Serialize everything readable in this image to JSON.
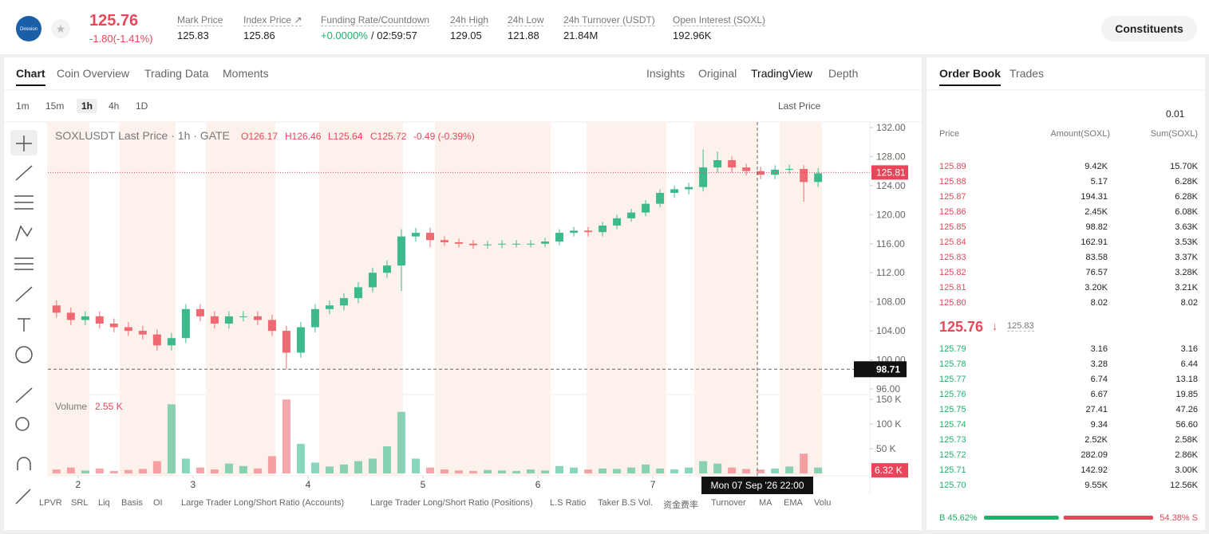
{
  "header": {
    "logo": "Direxion",
    "price": "125.76",
    "change": "-1.80(-1.41%)",
    "stats": [
      {
        "label": "Mark Price",
        "value": "125.83"
      },
      {
        "label": "Index Price ↗",
        "value": "125.86"
      },
      {
        "label": "Funding Rate/Countdown",
        "value": "+0.0000%",
        "extra": "/ 02:59:57"
      },
      {
        "label": "24h High",
        "value": "129.05"
      },
      {
        "label": "24h Low",
        "value": "121.88"
      },
      {
        "label": "24h Turnover (USDT)",
        "value": "21.84M"
      },
      {
        "label": "Open Interest (SOXL)",
        "value": "192.96K"
      }
    ],
    "button": "Constituents"
  },
  "chart_panel": {
    "tabs": [
      "Chart",
      "Coin Overview",
      "Trading Data",
      "Moments"
    ],
    "views": [
      "Insights",
      "Original",
      "TradingView",
      "Depth"
    ],
    "intervals": [
      "1m",
      "15m",
      "1h",
      "4h",
      "1D"
    ],
    "price_source": "Last Price",
    "legend": {
      "title": "SOXLUSDT Last Price · 1h · GATE",
      "o": "O126.17",
      "h": "H126.46",
      "l": "L125.64",
      "c": "C125.72",
      "chg": "-0.49 (-0.39%)"
    },
    "volume_label": "Volume",
    "volume_value": "2.55 K",
    "indicators": [
      "LPVR",
      "SRL",
      "Liq",
      "Basis",
      "OI",
      "Large Trader Long/Short Ratio (Accounts)",
      "Large Trader Long/Short Ratio (Positions)",
      "L.S Ratio",
      "Taker B.S Vol.",
      "资金费率",
      "Turnover",
      "MA",
      "EMA",
      "Volu"
    ]
  },
  "chart_data": {
    "type": "candlestick",
    "up_color": "#3cba8c",
    "down_color": "#ee6a72",
    "open": [
      107.5,
      106.5,
      105.5,
      106,
      105,
      104.5,
      104,
      103.5,
      102,
      103,
      107,
      106,
      105,
      106,
      106,
      105.5,
      104,
      101,
      104.5,
      107,
      107.5,
      108.5,
      110,
      112,
      113,
      117,
      117.5,
      116.5,
      116.2,
      116,
      115.8,
      115.9,
      116,
      116,
      116,
      116.3,
      117.5,
      117.8,
      117.6,
      118.5,
      119.5,
      120.3,
      121.5,
      123,
      123.5,
      123.8,
      126.5,
      127.5,
      126.5,
      126,
      125.5,
      126.2,
      126.3,
      124.5
    ],
    "high": [
      108.2,
      107.2,
      106.7,
      106.7,
      105.7,
      105.2,
      104.7,
      104.2,
      103.7,
      107.7,
      107.7,
      106.7,
      106.7,
      106.7,
      106.7,
      106.2,
      104.7,
      105.2,
      107.7,
      108.2,
      109.2,
      110.7,
      112.7,
      113.7,
      118,
      118.2,
      118.2,
      117,
      116.7,
      116.5,
      116.4,
      116.5,
      116.5,
      116.5,
      116.8,
      118,
      118.3,
      118.3,
      119,
      120,
      120.8,
      122,
      123.5,
      124,
      124.4,
      129,
      128.7,
      128,
      127,
      126.6,
      126.8,
      126.9,
      126.8,
      126.4
    ],
    "low": [
      105.8,
      104.8,
      104.8,
      104.3,
      103.8,
      103.3,
      102.8,
      101.3,
      101.3,
      102.3,
      105.3,
      104.3,
      104.3,
      105.3,
      104.8,
      103.3,
      98.7,
      100.3,
      103.8,
      106.3,
      106.8,
      107.8,
      109.3,
      111.3,
      109.5,
      116.3,
      115.5,
      115.7,
      115.5,
      115.3,
      115.3,
      115.4,
      115.5,
      115.5,
      115.5,
      115.8,
      117,
      117,
      117,
      118,
      119,
      119.8,
      121,
      122.3,
      122.8,
      123.2,
      125.8,
      125.8,
      125.4,
      124.9,
      124.9,
      125.6,
      121.8,
      123.8
    ],
    "close": [
      106.5,
      105.5,
      106,
      105,
      104.5,
      104,
      103.5,
      102,
      103,
      107,
      106,
      105,
      106,
      106,
      105.5,
      104,
      101,
      104.5,
      107,
      107.5,
      108.5,
      110,
      112,
      113,
      117,
      117.5,
      116.5,
      116.2,
      116,
      115.8,
      115.9,
      116,
      116,
      116,
      116.3,
      117.5,
      117.8,
      117.6,
      118.5,
      119.5,
      120.3,
      121.5,
      123,
      123.5,
      123.8,
      126.5,
      127.5,
      126.5,
      126,
      125.5,
      126.2,
      126.3,
      124.5,
      125.7
    ],
    "xlim": [
      -0.6,
      56.6
    ],
    "xticks": [
      {
        "value": 1.5,
        "label": "2"
      },
      {
        "value": 9.5,
        "label": "3"
      },
      {
        "value": 17.5,
        "label": "4"
      },
      {
        "value": 25.5,
        "label": "5"
      },
      {
        "value": 33.5,
        "label": "6"
      },
      {
        "value": 41.5,
        "label": "7"
      }
    ],
    "ylim": [
      95.56,
      132.77
    ],
    "yticks": [
      {
        "value": 132,
        "label": "132.00"
      },
      {
        "value": 128,
        "label": "128.00"
      },
      {
        "value": 124,
        "label": "124.00"
      },
      {
        "value": 120,
        "label": "120.00"
      },
      {
        "value": 116,
        "label": "116.00"
      },
      {
        "value": 112,
        "label": "112.00"
      },
      {
        "value": 108,
        "label": "108.00"
      },
      {
        "value": 104,
        "label": "104.00"
      },
      {
        "value": 100,
        "label": "100.00"
      },
      {
        "value": 96,
        "label": "96.00"
      }
    ],
    "last_price": {
      "value": 125.81,
      "label": "125.81"
    },
    "crosshair": {
      "x": 48.77,
      "price": {
        "value": 98.71,
        "label": "98.71"
      },
      "time": "Mon 07 Sep '26  22:00"
    },
    "volume": {
      "values": [
        8,
        12,
        6,
        10,
        5,
        7,
        9,
        25,
        140,
        30,
        12,
        8,
        20,
        15,
        10,
        35,
        150,
        60,
        22,
        14,
        18,
        25,
        30,
        55,
        125,
        30,
        12,
        8,
        6,
        5,
        7,
        6,
        5,
        8,
        6,
        15,
        12,
        8,
        10,
        9,
        12,
        18,
        10,
        8,
        12,
        25,
        20,
        12,
        9,
        8,
        10,
        14,
        40,
        12
      ],
      "ylim": [
        0,
        160
      ],
      "yticks": [
        {
          "value": 150,
          "label": "150 K"
        },
        {
          "value": 100,
          "label": "100 K"
        },
        {
          "value": 50,
          "label": "50 K"
        }
      ],
      "last": {
        "value": 6.32,
        "label": "6.32 K"
      }
    }
  },
  "order_book": {
    "tabs": [
      "Order Book",
      "Trades"
    ],
    "precision": "0.01",
    "columns": [
      "Price",
      "Amount(SOXL)",
      "Sum(SOXL)"
    ],
    "asks": [
      {
        "price": "125.89",
        "amount": "9.42K",
        "sum": "15.70K"
      },
      {
        "price": "125.88",
        "amount": "5.17",
        "sum": "6.28K"
      },
      {
        "price": "125.87",
        "amount": "194.31",
        "sum": "6.28K"
      },
      {
        "price": "125.86",
        "amount": "2.45K",
        "sum": "6.08K"
      },
      {
        "price": "125.85",
        "amount": "98.82",
        "sum": "3.63K"
      },
      {
        "price": "125.84",
        "amount": "162.91",
        "sum": "3.53K"
      },
      {
        "price": "125.83",
        "amount": "83.58",
        "sum": "3.37K"
      },
      {
        "price": "125.82",
        "amount": "76.57",
        "sum": "3.28K"
      },
      {
        "price": "125.81",
        "amount": "3.20K",
        "sum": "3.21K"
      },
      {
        "price": "125.80",
        "amount": "8.02",
        "sum": "8.02"
      }
    ],
    "mid": {
      "price": "125.76",
      "mark": "125.83"
    },
    "bids": [
      {
        "price": "125.79",
        "amount": "3.16",
        "sum": "3.16"
      },
      {
        "price": "125.78",
        "amount": "3.28",
        "sum": "6.44"
      },
      {
        "price": "125.77",
        "amount": "6.74",
        "sum": "13.18"
      },
      {
        "price": "125.76",
        "amount": "6.67",
        "sum": "19.85"
      },
      {
        "price": "125.75",
        "amount": "27.41",
        "sum": "47.26"
      },
      {
        "price": "125.74",
        "amount": "9.34",
        "sum": "56.60"
      },
      {
        "price": "125.73",
        "amount": "2.52K",
        "sum": "2.58K"
      },
      {
        "price": "125.72",
        "amount": "282.09",
        "sum": "2.86K"
      },
      {
        "price": "125.71",
        "amount": "142.92",
        "sum": "3.00K"
      },
      {
        "price": "125.70",
        "amount": "9.55K",
        "sum": "12.56K"
      }
    ],
    "footer": {
      "buy": 45.62,
      "sell": 54.38,
      "buy_label": "B 45.62%",
      "sell_label": "54.38% S"
    }
  }
}
